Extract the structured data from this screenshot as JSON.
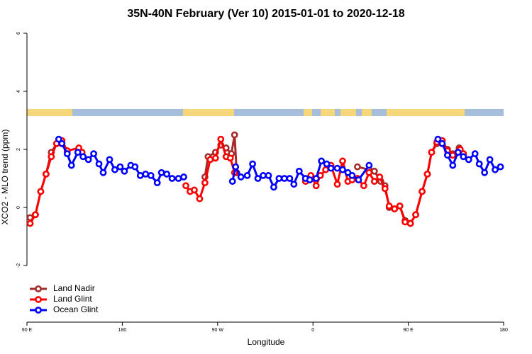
{
  "chart_data": {
    "type": "line",
    "title": "35N-40N February (Ver 10)   2015-01-01 to 2020-12-18",
    "x_label": "Longitude",
    "y_label": "XCO2 - MLO trend (ppm)",
    "xlim": [
      90,
      540
    ],
    "ylim": [
      -3.95,
      6.17
    ],
    "xticks": [
      {
        "value": 90,
        "label": "90 E"
      },
      180,
      {
        "value": 270,
        "label": "90 W"
      },
      {
        "value": 360,
        "label": "0"
      },
      {
        "value": 450,
        "label": "90 E"
      },
      {
        "value": 540,
        "label": "180"
      }
    ],
    "yticks": [
      -2,
      0,
      2,
      4,
      6
    ],
    "legend": "bottom-left",
    "series": [
      {
        "name": "Land Nadir",
        "color": "#a52a2a",
        "x": [
          93,
          98,
          103,
          108,
          113,
          118,
          123,
          128,
          200,
          258,
          261,
          268,
          273,
          278,
          283,
          286,
          288,
          370,
          402,
          413,
          418,
          424,
          428,
          432,
          437,
          442,
          447,
          452,
          457,
          463,
          468,
          472,
          477,
          482,
          487,
          492,
          498,
          502
        ],
        "values": [
          -0.35,
          -0.25,
          0.55,
          1.15,
          1.9,
          2.2,
          2.3,
          1.95,
          null,
          1.05,
          1.75,
          1.9,
          2.15,
          2.05,
          1.85,
          2.5,
          1.2,
          null,
          1.4,
          1.3,
          1.25,
          0.9,
          0.75,
          0.0,
          -0.05,
          0.05,
          -0.45,
          -0.55,
          -0.25,
          0.55,
          1.15,
          1.9,
          2.2,
          2.3,
          2.0,
          1.85,
          2.05,
          1.85
        ]
      },
      {
        "name": "Land Glint",
        "color": "#ff0000",
        "x": [
          93,
          98,
          103,
          108,
          113,
          118,
          123,
          128,
          139,
          142,
          200,
          240,
          244,
          248,
          253,
          258,
          263,
          268,
          273,
          278,
          282,
          286,
          320,
          353,
          358,
          363,
          367,
          372,
          377,
          383,
          388,
          393,
          397,
          402,
          408,
          413,
          418,
          423,
          428,
          432,
          437,
          442,
          447,
          452,
          457,
          463,
          468,
          472,
          477,
          482,
          487,
          492,
          499,
          502
        ],
        "values": [
          -0.55,
          -0.25,
          0.55,
          1.15,
          1.75,
          2.2,
          2.3,
          1.95,
          2.05,
          1.9,
          null,
          0.75,
          0.55,
          0.6,
          0.3,
          0.85,
          1.65,
          1.7,
          2.35,
          1.75,
          1.7,
          1.2,
          null,
          0.9,
          1.1,
          0.75,
          1.1,
          1.3,
          1.45,
          0.8,
          1.6,
          0.9,
          0.95,
          1.0,
          0.75,
          1.2,
          0.9,
          1.05,
          0.65,
          0.05,
          -0.05,
          0.05,
          -0.5,
          -0.55,
          -0.25,
          0.55,
          1.15,
          1.9,
          2.25,
          2.3,
          1.95,
          1.8,
          2.0,
          1.85
        ]
      },
      {
        "name": "Ocean Glint",
        "color": "#0000ff",
        "x": [
          120,
          123,
          128,
          132,
          138,
          143,
          148,
          153,
          158,
          162,
          168,
          173,
          178,
          182,
          188,
          192,
          197,
          202,
          207,
          213,
          217,
          222,
          227,
          233,
          238,
          260,
          284,
          287,
          292,
          298,
          303,
          308,
          313,
          318,
          323,
          328,
          333,
          338,
          342,
          347,
          353,
          357,
          363,
          368,
          373,
          377,
          383,
          388,
          393,
          397,
          403,
          413,
          450,
          478,
          482,
          487,
          492,
          497,
          502,
          507,
          513,
          517,
          522,
          527,
          532,
          537
        ],
        "values": [
          2.35,
          2.2,
          1.85,
          1.45,
          1.9,
          1.75,
          1.65,
          1.85,
          1.5,
          1.2,
          1.65,
          1.3,
          1.4,
          1.25,
          1.45,
          1.4,
          1.1,
          1.15,
          1.1,
          0.85,
          1.2,
          1.15,
          1.0,
          1.0,
          1.05,
          null,
          0.9,
          1.4,
          1.05,
          1.1,
          1.5,
          1.0,
          1.1,
          1.1,
          0.7,
          1.0,
          1.0,
          1.0,
          0.8,
          1.25,
          1.0,
          0.95,
          1.0,
          1.6,
          1.5,
          1.35,
          1.35,
          1.3,
          1.2,
          1.1,
          0.95,
          1.45,
          null,
          2.35,
          2.2,
          1.8,
          1.45,
          1.9,
          1.75,
          1.65,
          1.85,
          1.5,
          1.2,
          1.65,
          1.3,
          1.4
        ]
      }
    ]
  }
}
